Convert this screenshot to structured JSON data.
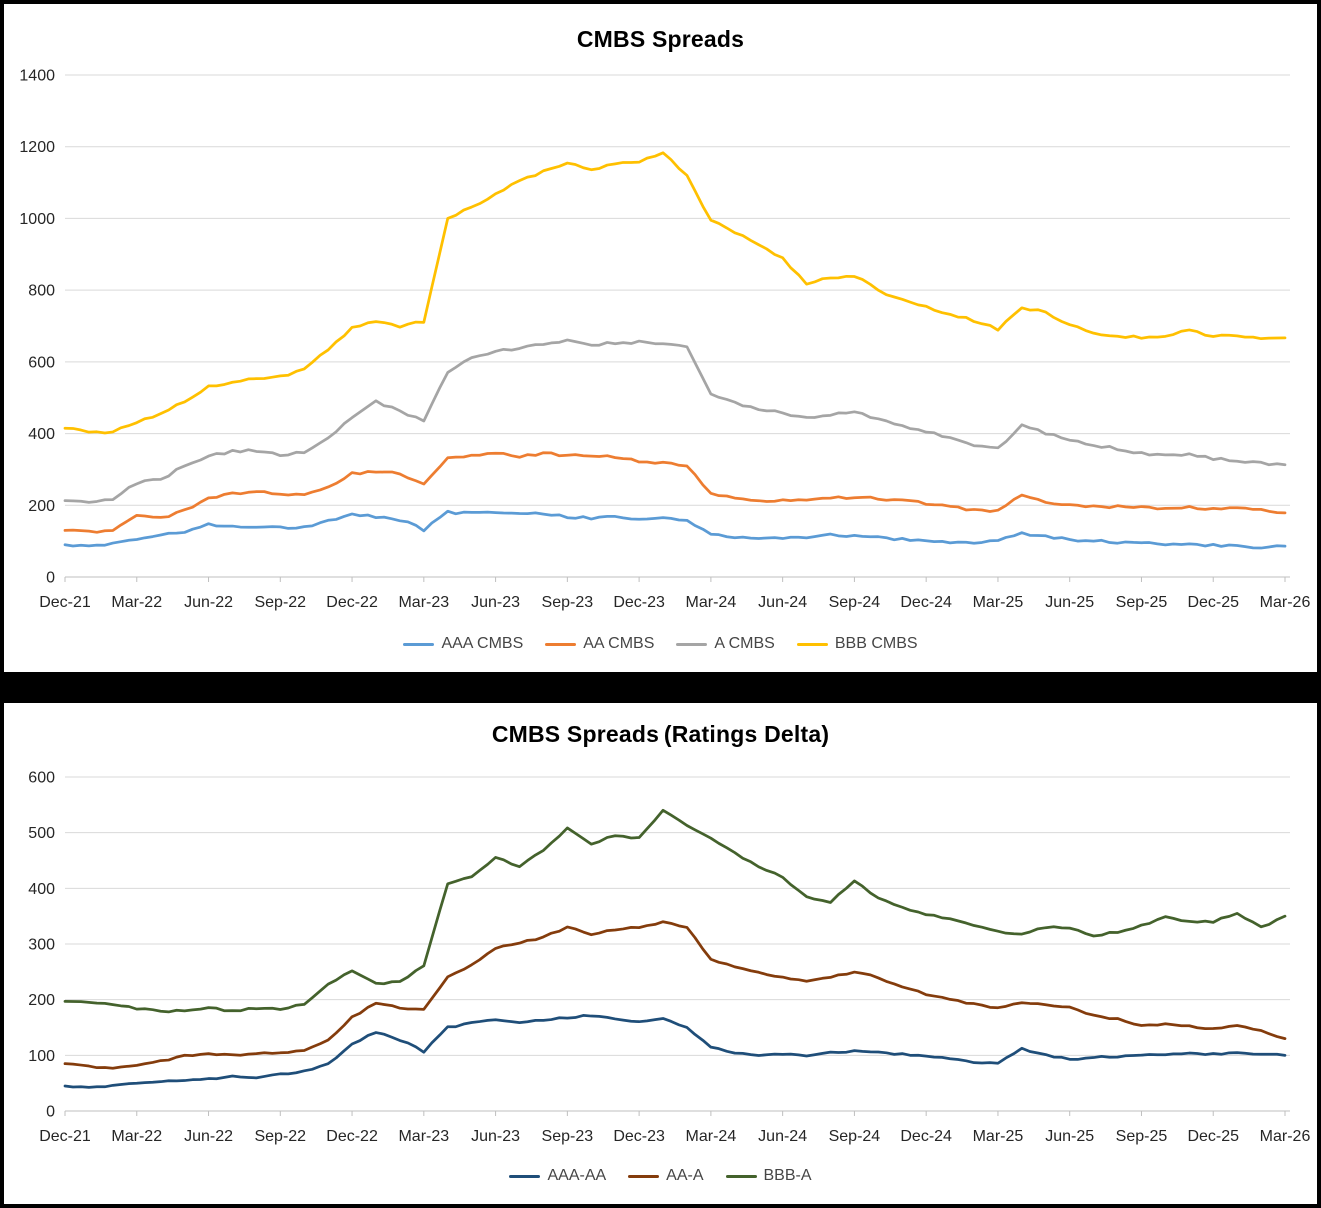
{
  "chart_data": [
    {
      "type": "line",
      "title": "CMBS Spreads",
      "x_tick_labels": [
        "Dec-21",
        "Mar-22",
        "Jun-22",
        "Sep-22",
        "Dec-22",
        "Mar-23",
        "Jun-23",
        "Sep-23",
        "Dec-23",
        "Mar-24",
        "Jun-24",
        "Sep-24",
        "Dec-24",
        "Mar-25",
        "Jun-25",
        "Sep-25",
        "Dec-25",
        "Mar-26"
      ],
      "x_frequency": "monthly",
      "x_range": [
        "Dec-21",
        "Mar-26"
      ],
      "ylim": [
        0,
        1400
      ],
      "y_tick_step": 200,
      "grid": true,
      "legend_position": "bottom",
      "series": [
        {
          "name": "AAA CMBS",
          "color": "#5B9BD5",
          "values": [
            90,
            88,
            92,
            105,
            118,
            125,
            148,
            140,
            142,
            138,
            140,
            158,
            175,
            168,
            160,
            132,
            180,
            178,
            182,
            180,
            178,
            168,
            165,
            168,
            160,
            165,
            158,
            120,
            112,
            108,
            110,
            112,
            118,
            115,
            110,
            105,
            100,
            98,
            97,
            100,
            122,
            112,
            105,
            100,
            97,
            95,
            92,
            90,
            88,
            88,
            83,
            86
          ]
        },
        {
          "name": "AA CMBS",
          "color": "#ED7D31",
          "values": [
            130,
            126,
            130,
            172,
            165,
            185,
            218,
            232,
            238,
            232,
            228,
            252,
            288,
            296,
            288,
            258,
            330,
            338,
            345,
            335,
            345,
            338,
            340,
            335,
            322,
            320,
            310,
            232,
            218,
            210,
            214,
            212,
            220,
            222,
            219,
            213,
            205,
            196,
            186,
            185,
            230,
            206,
            200,
            198,
            196,
            195,
            192,
            194,
            191,
            194,
            187,
            179
          ]
        },
        {
          "name": "A CMBS",
          "color": "#A5A5A5",
          "values": [
            213,
            208,
            218,
            262,
            272,
            310,
            338,
            350,
            353,
            340,
            348,
            388,
            445,
            488,
            462,
            438,
            570,
            610,
            628,
            640,
            648,
            660,
            648,
            652,
            655,
            650,
            640,
            510,
            485,
            470,
            458,
            445,
            452,
            460,
            442,
            420,
            405,
            388,
            368,
            358,
            425,
            400,
            385,
            368,
            358,
            345,
            338,
            342,
            330,
            325,
            318,
            313
          ]
        },
        {
          "name": "BBB CMBS",
          "color": "#FFC000",
          "values": [
            415,
            407,
            404,
            430,
            455,
            490,
            530,
            545,
            553,
            558,
            580,
            635,
            695,
            715,
            700,
            712,
            1000,
            1030,
            1070,
            1105,
            1130,
            1155,
            1135,
            1155,
            1160,
            1185,
            1120,
            995,
            960,
            930,
            888,
            818,
            835,
            840,
            800,
            772,
            755,
            732,
            715,
            690,
            753,
            737,
            705,
            682,
            670,
            668,
            672,
            688,
            670,
            675,
            662,
            667
          ]
        }
      ]
    },
    {
      "type": "line",
      "title": "CMBS Spreads (Ratings Delta)",
      "x_tick_labels": [
        "Dec-21",
        "Mar-22",
        "Jun-22",
        "Sep-22",
        "Dec-22",
        "Mar-23",
        "Jun-23",
        "Sep-23",
        "Dec-23",
        "Mar-24",
        "Jun-24",
        "Sep-24",
        "Dec-24",
        "Mar-25",
        "Jun-25",
        "Sep-25",
        "Dec-25",
        "Mar-26"
      ],
      "x_frequency": "monthly",
      "x_range": [
        "Dec-21",
        "Mar-26"
      ],
      "ylim": [
        0,
        600
      ],
      "y_tick_step": 100,
      "grid": true,
      "legend_position": "bottom",
      "series": [
        {
          "name": "AAA-AA",
          "color": "#1F4E79",
          "values": [
            45,
            43,
            45,
            50,
            53,
            55,
            58,
            62,
            61,
            66,
            72,
            85,
            120,
            142,
            128,
            107,
            150,
            158,
            165,
            160,
            164,
            168,
            172,
            165,
            160,
            166,
            150,
            115,
            105,
            100,
            103,
            100,
            105,
            108,
            105,
            102,
            98,
            95,
            88,
            85,
            112,
            100,
            93,
            96,
            98,
            100,
            102,
            103,
            102,
            105,
            103,
            100
          ]
        },
        {
          "name": "AA-A",
          "color": "#843C0C",
          "values": [
            85,
            80,
            77,
            82,
            90,
            99,
            102,
            100,
            103,
            105,
            108,
            128,
            168,
            195,
            185,
            182,
            240,
            262,
            292,
            302,
            312,
            330,
            318,
            326,
            330,
            340,
            330,
            272,
            258,
            248,
            240,
            232,
            240,
            250,
            240,
            222,
            210,
            200,
            192,
            185,
            195,
            190,
            186,
            172,
            165,
            153,
            157,
            152,
            148,
            154,
            144,
            130
          ]
        },
        {
          "name": "BBB-A",
          "color": "#44622C",
          "values": [
            197,
            195,
            192,
            184,
            179,
            180,
            186,
            179,
            185,
            183,
            192,
            228,
            252,
            228,
            232,
            262,
            408,
            420,
            455,
            440,
            468,
            508,
            480,
            495,
            490,
            540,
            512,
            490,
            463,
            440,
            420,
            385,
            375,
            413,
            383,
            365,
            353,
            345,
            334,
            322,
            318,
            330,
            330,
            315,
            322,
            333,
            348,
            340,
            340,
            356,
            330,
            350
          ]
        }
      ]
    }
  ],
  "styles": {
    "grid_color": "#D9D9D9",
    "axis_color": "#BFBFBF",
    "tick_label_color": "#262626",
    "legend_text_color": "#464646",
    "panel_background": "#FFFFFF",
    "frame_background": "#000000"
  }
}
